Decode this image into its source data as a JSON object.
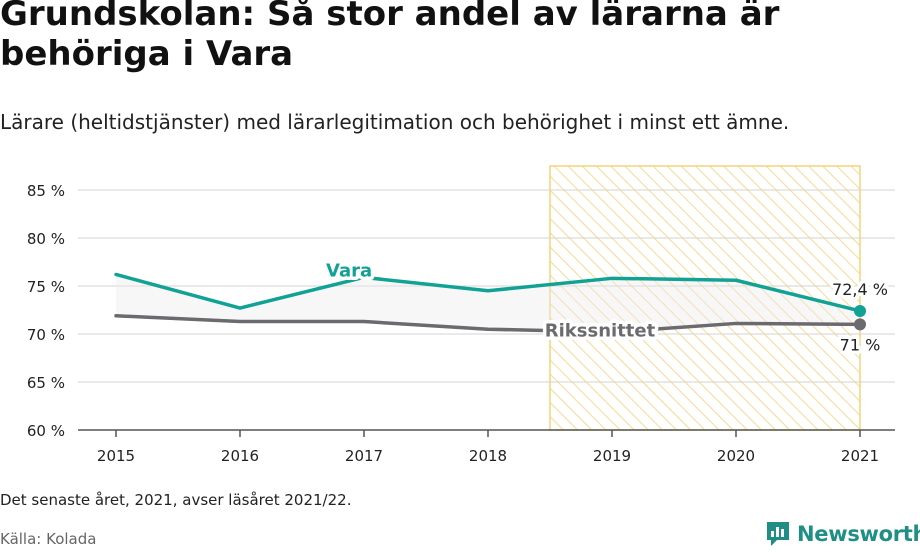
{
  "title": "Grundskolan: Så stor andel av lärarna är behöriga i Vara",
  "subtitle": "Lärare (heltidstjänster) med lärarlegitimation och behörighet i minst ett ämne.",
  "note": "Det senaste året, 2021, avser läsåret 2021/22.",
  "source": "Källa: Kolada",
  "brand": "Newsworthy",
  "colors": {
    "vara": "#12a295",
    "riks": "#6b6b6f",
    "highlight_stroke": "#f5d27a",
    "brand": "#1f8f86"
  },
  "chart_data": {
    "type": "line",
    "x": [
      2015,
      2016,
      2017,
      2018,
      2019,
      2020,
      2021
    ],
    "ylim": [
      60,
      85
    ],
    "yticks": [
      60,
      65,
      70,
      75,
      80,
      85
    ],
    "ytick_labels": [
      "60 %",
      "65 %",
      "70 %",
      "75 %",
      "80 %",
      "85 %"
    ],
    "xtick_labels": [
      "2015",
      "2016",
      "2017",
      "2018",
      "2019",
      "2020",
      "2021"
    ],
    "grid": true,
    "highlight_range": [
      2018.5,
      2021
    ],
    "series": [
      {
        "name": "Vara",
        "values": [
          76.2,
          72.7,
          75.9,
          74.5,
          75.8,
          75.6,
          72.4
        ],
        "end_label": "72,4 %"
      },
      {
        "name": "Rikssnittet",
        "values": [
          71.9,
          71.3,
          71.3,
          70.5,
          70.2,
          71.1,
          71.0
        ],
        "end_label": "71 %"
      }
    ]
  }
}
